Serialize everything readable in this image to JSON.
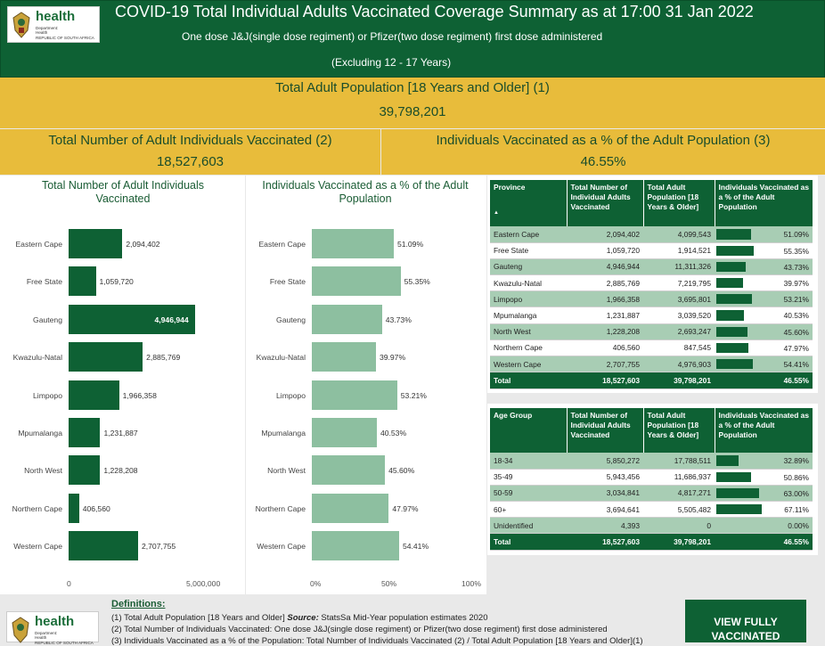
{
  "header": {
    "logo": {
      "brand": "health",
      "dept": "Department:\nHealth\nREPUBLIC OF SOUTH AFRICA"
    },
    "title": "COVID-19 Total Individual Adults Vaccinated Coverage Summary as at 17:00 31 Jan 2022",
    "subtitle": "One dose J&J(single dose regiment)  or Pfizer(two dose regiment) first dose administered",
    "exclusion": "(Excluding 12 - 17 Years)"
  },
  "kpis": {
    "population": {
      "label": "Total Adult Population [18 Years and Older] (1)",
      "value": "39,798,201"
    },
    "vaccinated": {
      "label": "Total Number of Adult Individuals Vaccinated (2)",
      "value": "18,527,603"
    },
    "percent": {
      "label": "Individuals Vaccinated as a % of the Adult Population (3)",
      "value": "46.55%"
    }
  },
  "chart_data": [
    {
      "type": "bar",
      "orientation": "horizontal",
      "title": "Total Number of Adult Individuals Vaccinated",
      "categories": [
        "Eastern Cape",
        "Free State",
        "Gauteng",
        "Kwazulu-Natal",
        "Limpopo",
        "Mpumalanga",
        "North West",
        "Northern Cape",
        "Western Cape"
      ],
      "values": [
        2094402,
        1059720,
        4946944,
        2885769,
        1966358,
        1231887,
        1228208,
        406560,
        2707755
      ],
      "labels": [
        "2,094,402",
        "1,059,720",
        "4,946,944",
        "2,885,769",
        "1,966,358",
        "1,231,887",
        "1,228,208",
        "406,560",
        "2,707,755"
      ],
      "xlim": [
        0,
        5000000
      ],
      "xticks": [
        "0",
        "5,000,000"
      ],
      "color": "#0e6134"
    },
    {
      "type": "bar",
      "orientation": "horizontal",
      "title": "Individuals Vaccinated as a % of the Adult Population",
      "categories": [
        "Eastern Cape",
        "Free State",
        "Gauteng",
        "Kwazulu-Natal",
        "Limpopo",
        "Mpumalanga",
        "North West",
        "Northern Cape",
        "Western Cape"
      ],
      "values": [
        51.09,
        55.35,
        43.73,
        39.97,
        53.21,
        40.53,
        45.6,
        47.97,
        54.41
      ],
      "labels": [
        "51.09%",
        "55.35%",
        "43.73%",
        "39.97%",
        "53.21%",
        "40.53%",
        "45.60%",
        "47.97%",
        "54.41%"
      ],
      "xlim": [
        0,
        100
      ],
      "xticks": [
        "0%",
        "50%",
        "100%"
      ],
      "color": "#8dbfa0"
    }
  ],
  "province_table": {
    "headers": [
      "Province",
      "Total Number of Individual Adults Vaccinated",
      "Total Adult Population [18 Years & Older]",
      "Individuals Vaccinated as a % of the Adult Population"
    ],
    "sort_icon": "▲",
    "rows": [
      {
        "name": "Eastern Cape",
        "vacc": "2,094,402",
        "pop": "4,099,543",
        "pct": "51.09%",
        "pv": 51.09
      },
      {
        "name": "Free State",
        "vacc": "1,059,720",
        "pop": "1,914,521",
        "pct": "55.35%",
        "pv": 55.35
      },
      {
        "name": "Gauteng",
        "vacc": "4,946,944",
        "pop": "11,311,326",
        "pct": "43.73%",
        "pv": 43.73
      },
      {
        "name": "Kwazulu-Natal",
        "vacc": "2,885,769",
        "pop": "7,219,795",
        "pct": "39.97%",
        "pv": 39.97
      },
      {
        "name": "Limpopo",
        "vacc": "1,966,358",
        "pop": "3,695,801",
        "pct": "53.21%",
        "pv": 53.21
      },
      {
        "name": "Mpumalanga",
        "vacc": "1,231,887",
        "pop": "3,039,520",
        "pct": "40.53%",
        "pv": 40.53
      },
      {
        "name": "North West",
        "vacc": "1,228,208",
        "pop": "2,693,247",
        "pct": "45.60%",
        "pv": 45.6
      },
      {
        "name": "Northern Cape",
        "vacc": "406,560",
        "pop": "847,545",
        "pct": "47.97%",
        "pv": 47.97
      },
      {
        "name": "Western Cape",
        "vacc": "2,707,755",
        "pop": "4,976,903",
        "pct": "54.41%",
        "pv": 54.41
      }
    ],
    "total": {
      "name": "Total",
      "vacc": "18,527,603",
      "pop": "39,798,201",
      "pct": "46.55%"
    }
  },
  "age_table": {
    "headers": [
      "Age Group",
      "Total Number of Individual Adults Vaccinated",
      "Total Adult Population [18 Years & Older]",
      "Individuals Vaccinated as a % of the Adult Population"
    ],
    "rows": [
      {
        "name": "18-34",
        "vacc": "5,850,272",
        "pop": "17,788,511",
        "pct": "32.89%",
        "pv": 32.89
      },
      {
        "name": "35-49",
        "vacc": "5,943,456",
        "pop": "11,686,937",
        "pct": "50.86%",
        "pv": 50.86
      },
      {
        "name": "50-59",
        "vacc": "3,034,841",
        "pop": "4,817,271",
        "pct": "63.00%",
        "pv": 63.0
      },
      {
        "name": "60+",
        "vacc": "3,694,641",
        "pop": "5,505,482",
        "pct": "67.11%",
        "pv": 67.11
      },
      {
        "name": "Unidentified",
        "vacc": "4,393",
        "pop": "0",
        "pct": "0.00%",
        "pv": 0
      }
    ],
    "total": {
      "name": "Total",
      "vacc": "18,527,603",
      "pop": "39,798,201",
      "pct": "46.55%"
    }
  },
  "definitions": {
    "title": "Definitions:",
    "items": [
      "(1) Total Adult Population [18 Years and Older] Source: StatsSa Mid-Year population estimates 2020",
      "(2) Total Number of Individuals Vaccinated: One dose J&J(single dose regiment) or Pfizer(two dose regiment) first dose administered",
      "(3) Individuals Vaccinated as a % of the Population: Total Number of Individuals Vaccinated (2) / Total Adult Population [18 Years and Older](1)"
    ]
  },
  "view_button": "VIEW FULLY VACCINATED"
}
